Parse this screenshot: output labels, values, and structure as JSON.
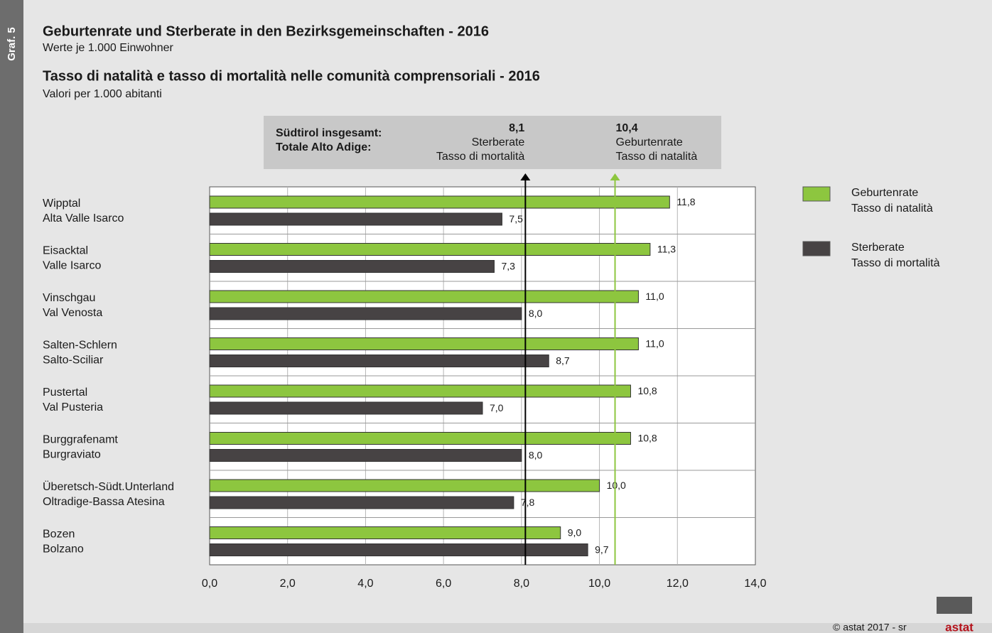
{
  "chart_data": {
    "type": "bar",
    "orientation": "horizontal",
    "side_label": "Graf. 5",
    "title": "Geburtenrate und Sterberate in den Bezirksgemeinschaften - 2016",
    "subtitle": "Werte je 1.000 Einwohner",
    "title_2": "Tasso di natalità e tasso di mortalità nelle comunità comprensoriali - 2016",
    "subtitle_2": "Valori per 1.000 abitanti",
    "categories": [
      [
        "Wipptal",
        "Alta Valle Isarco"
      ],
      [
        "Eisacktal",
        "Valle Isarco"
      ],
      [
        "Vinschgau",
        "Val Venosta"
      ],
      [
        "Salten-Schlern",
        "Salto-Sciliar"
      ],
      [
        "Pustertal",
        "Val Pusteria"
      ],
      [
        "Burggrafenamt",
        "Burgraviato"
      ],
      [
        "Überetsch-Südt.Unterland",
        "Oltradige-Bassa Atesina"
      ],
      [
        "Bozen",
        "Bolzano"
      ]
    ],
    "series": [
      {
        "name": [
          "Geburtenrate",
          "Tasso di natalità"
        ],
        "color": "#8dc63f",
        "values": [
          11.8,
          11.3,
          11.0,
          11.0,
          10.8,
          10.8,
          10.0,
          9.0
        ],
        "value_labels": [
          "11,8",
          "11,3",
          "11,0",
          "11,0",
          "10,8",
          "10,8",
          "10,0",
          "9,0"
        ]
      },
      {
        "name": [
          "Sterberate",
          "Tasso di mortalità"
        ],
        "color": "#474344",
        "values": [
          7.5,
          7.3,
          8.0,
          8.7,
          7.0,
          8.0,
          7.8,
          9.7
        ],
        "value_labels": [
          "7,5",
          "7,3",
          "8,0",
          "8,7",
          "7,0",
          "8,0",
          "7,8",
          "9,7"
        ]
      }
    ],
    "xlim": [
      0,
      14
    ],
    "xticks": [
      {
        "value": 0,
        "label": "0,0"
      },
      {
        "value": 2,
        "label": "2,0"
      },
      {
        "value": 4,
        "label": "4,0"
      },
      {
        "value": 6,
        "label": "6,0"
      },
      {
        "value": 8,
        "label": "8,0"
      },
      {
        "value": 10,
        "label": "10,0"
      },
      {
        "value": 12,
        "label": "12,0"
      },
      {
        "value": 14,
        "label": "14,0"
      }
    ],
    "grid": true,
    "legend": "right",
    "reference_title": [
      "Südtirol insgesamt:",
      "Totale Alto Adige:"
    ],
    "reference_lines": [
      {
        "value": 8.1,
        "label": "8,1",
        "text": [
          "Sterberate",
          "Tasso di mortalità"
        ],
        "color": "#000000",
        "align": "right"
      },
      {
        "value": 10.4,
        "label": "10,4",
        "text": [
          "Geburtenrate",
          "Tasso di natalità"
        ],
        "color": "#8dc63f",
        "align": "left"
      }
    ],
    "footer": "© astat 2017 - sr",
    "logo": "astat"
  }
}
